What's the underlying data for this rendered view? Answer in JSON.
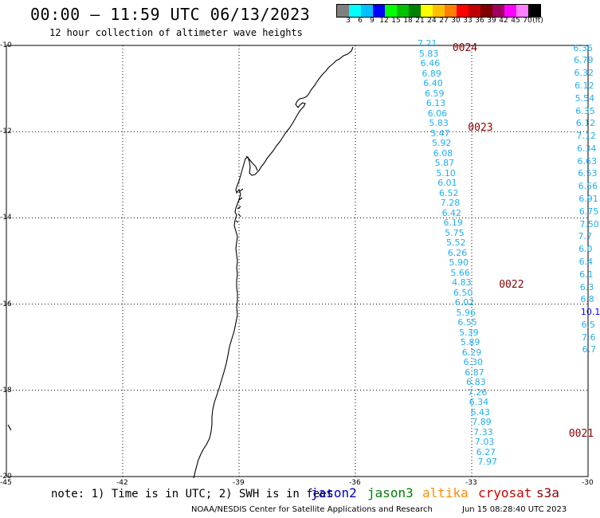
{
  "header": {
    "title": "00:00 – 11:59 UTC 06/13/2023",
    "subtitle": "12 hour collection of altimeter wave heights"
  },
  "colorbar": {
    "unit_label": "(ft)",
    "swatches": [
      {
        "label": "3",
        "color": "#7f7f7f"
      },
      {
        "label": "6",
        "color": "#00ffff"
      },
      {
        "label": "9",
        "color": "#00bfff"
      },
      {
        "label": "12",
        "color": "#0000ff"
      },
      {
        "label": "15",
        "color": "#00ff00"
      },
      {
        "label": "18",
        "color": "#00c000"
      },
      {
        "label": "21",
        "color": "#008000"
      },
      {
        "label": "24",
        "color": "#ffff00"
      },
      {
        "label": "27",
        "color": "#ffc000"
      },
      {
        "label": "30",
        "color": "#ff8000"
      },
      {
        "label": "33",
        "color": "#ff0000"
      },
      {
        "label": "36",
        "color": "#c00000"
      },
      {
        "label": "39",
        "color": "#800000"
      },
      {
        "label": "42",
        "color": "#a00060"
      },
      {
        "label": "45",
        "color": "#ff00ff"
      },
      {
        "label": "70",
        "color": "#ff80ff"
      },
      {
        "label": "",
        "color": "#000000"
      }
    ]
  },
  "map": {
    "lon_labels": [
      "-45",
      "-42",
      "-39",
      "-36",
      "-33",
      "-30"
    ],
    "lat_labels": [
      "-10",
      "-12",
      "-14",
      "-16",
      "-18",
      "-20"
    ],
    "swh_color": "#20b0f0",
    "pass_color": "#8b0000",
    "track_values": [
      "7.21",
      "5.83",
      "6.46",
      "6.89",
      "6.40",
      "6.59",
      "6.13",
      "6.06",
      "5.83",
      "5.47",
      "5.92",
      "6.08",
      "5.87",
      "5.10",
      "6.01",
      "6.52",
      "7.28",
      "6.42",
      "6.19",
      "5.75",
      "5.52",
      "6.26",
      "5.90",
      "5.66",
      "4.83",
      "6.50",
      "6.02",
      "5.96",
      "6.55",
      "5.39",
      "5.89",
      "6.29",
      "6.30",
      "6.87",
      "6.83",
      "7.26",
      "6.34",
      "6.43",
      "7.89",
      "7.33",
      "7.03",
      "6.27",
      "7.97"
    ],
    "right_values": [
      "6.36",
      "6.79",
      "6.32",
      "6.12",
      "5.54",
      "6.35",
      "6.12",
      "7.12",
      "6.34",
      "6.63",
      "6.53",
      "6.56",
      "6.91",
      "6.75",
      "7.50",
      "7.7",
      "6.0",
      "6.4",
      "6.1",
      "6.3",
      "6.8",
      "10.1",
      "6.5",
      "7.6",
      "6.7"
    ],
    "pass_labels": [
      {
        "id": "0024"
      },
      {
        "id": "0023"
      },
      {
        "id": "0022"
      },
      {
        "id": "0021"
      }
    ]
  },
  "footer": {
    "note": "note: 1) Time is in UTC; 2) SWH is in feet",
    "satellites": [
      {
        "name": "jason2",
        "color": "#0000cd"
      },
      {
        "name": "jason3",
        "color": "#008000"
      },
      {
        "name": "altika",
        "color": "#ff8c00"
      },
      {
        "name": "cryosat",
        "color": "#cc0000"
      },
      {
        "name": "s3a",
        "color": "#8b0000"
      }
    ],
    "credit": "NOAA/NESDIS Center for Satellite Applications and Research",
    "timestamp": "Jun 15 08:28:40 UTC 2023"
  }
}
